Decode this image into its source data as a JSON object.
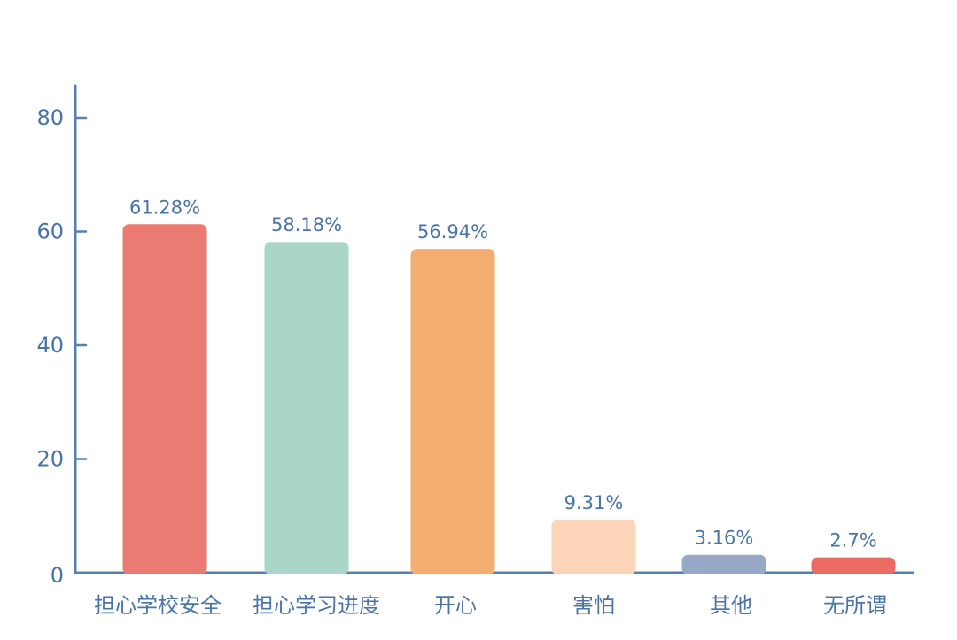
{
  "chart_data": {
    "type": "bar",
    "categories": [
      "担心学校安全",
      "担心学习进度",
      "开心",
      "害怕",
      "其他",
      "无所谓"
    ],
    "values": [
      61.28,
      58.18,
      56.94,
      9.31,
      3.16,
      2.7
    ],
    "value_labels": [
      "61.28%",
      "58.18%",
      "56.94%",
      "9.31%",
      "3.16%",
      "2.7%"
    ],
    "bar_colors": [
      "#eb7b72",
      "#a9d6c8",
      "#f4ad70",
      "#fcd4b8",
      "#98a8c8",
      "#eb6c62"
    ],
    "ylim": [
      0,
      80
    ],
    "yticks": [
      0,
      20,
      40,
      60,
      80
    ],
    "ytick_labels": [
      "0",
      "20",
      "40",
      "60",
      "80"
    ],
    "grid": false,
    "legend": "none",
    "axis_color": "#5580b0",
    "text_color": "#4a74a8",
    "title": "",
    "xlabel": "",
    "ylabel": ""
  }
}
